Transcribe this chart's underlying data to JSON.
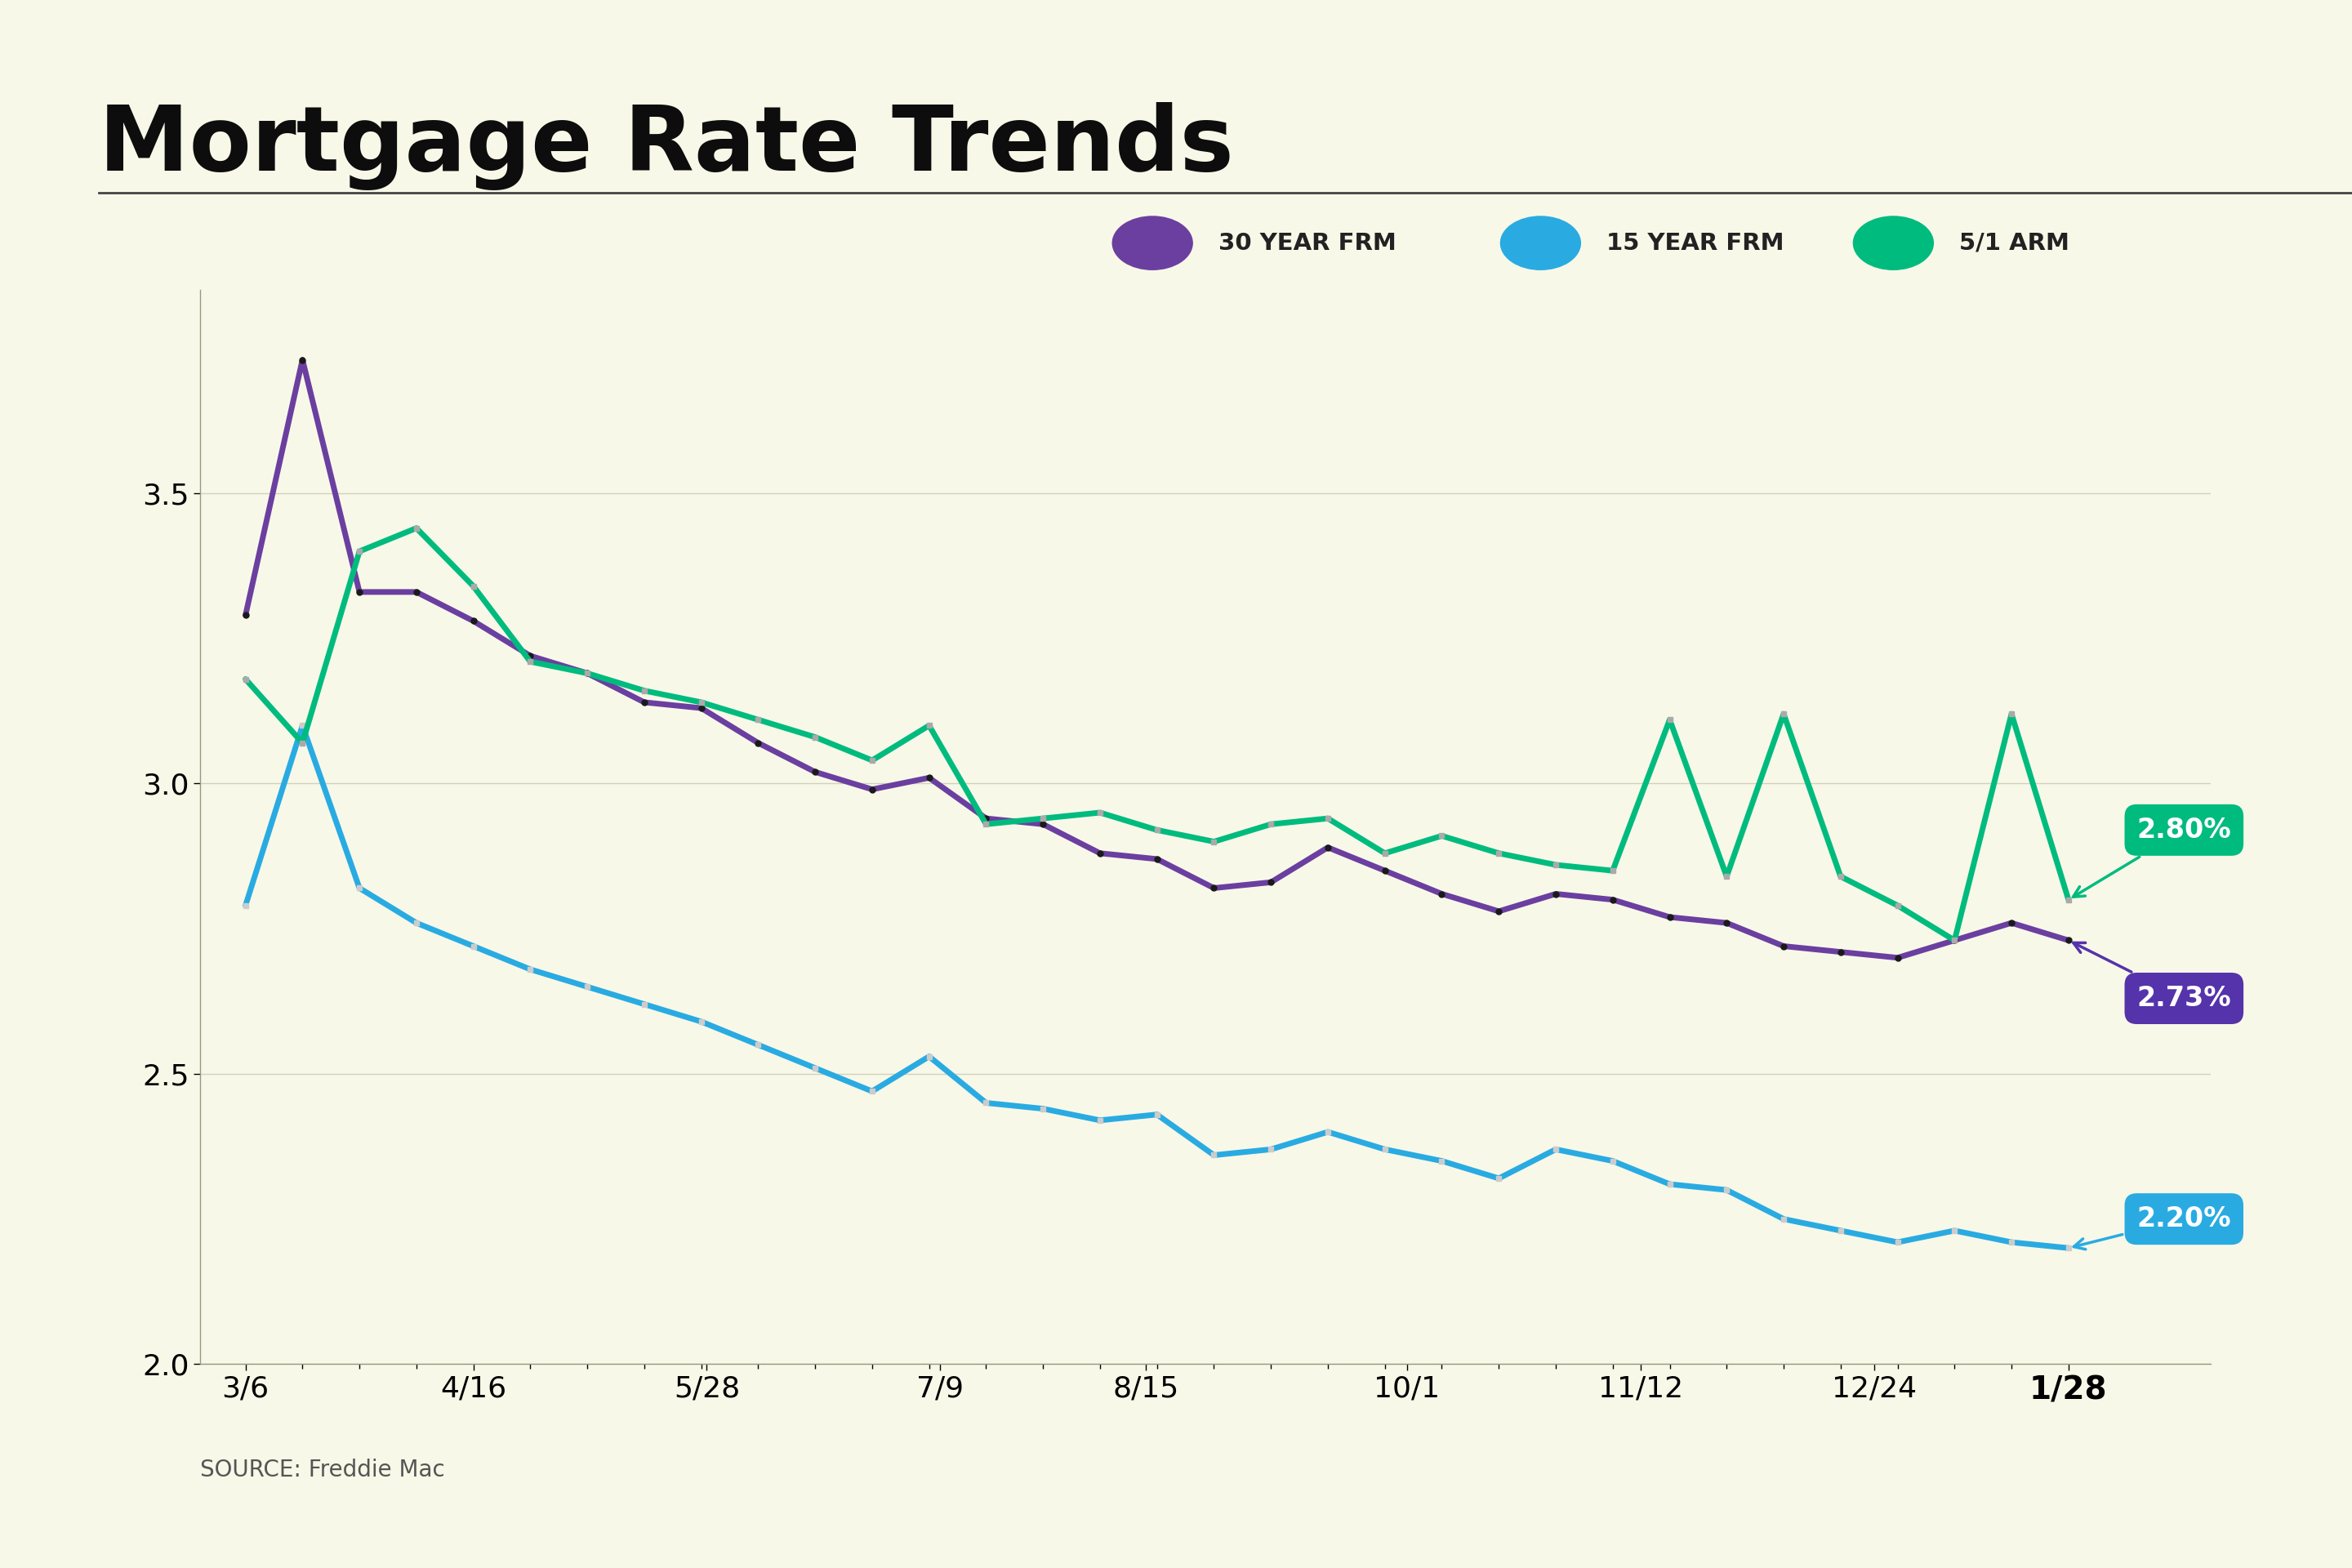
{
  "title": "Mortgage Rate Trends",
  "background_color": "#F8F8E8",
  "source_text": "SOURCE: Freddie Mac",
  "x_labels": [
    "3/6",
    "4/16",
    "5/28",
    "7/9",
    "8/15",
    "10/1",
    "11/12",
    "12/24",
    "1/28"
  ],
  "ylim": [
    2.0,
    3.85
  ],
  "yticks": [
    2.0,
    2.5,
    3.0,
    3.5
  ],
  "legend_items": [
    {
      "label": "30 YEAR FRM",
      "color": "#6B3FA0"
    },
    {
      "label": "15 YEAR FRM",
      "color": "#29ABE2"
    },
    {
      "label": "5/1 ARM",
      "color": "#00BB7E"
    }
  ],
  "series_30yr": {
    "color": "#6B3FA0",
    "linewidth": 5,
    "values": [
      3.29,
      3.73,
      3.33,
      3.33,
      3.28,
      3.22,
      3.19,
      3.14,
      3.13,
      3.07,
      3.02,
      2.99,
      3.01,
      2.94,
      2.93,
      2.88,
      2.87,
      2.82,
      2.83,
      2.89,
      2.85,
      2.81,
      2.78,
      2.81,
      2.8,
      2.77,
      2.76,
      2.72,
      2.71,
      2.7,
      2.73,
      2.76,
      2.73
    ]
  },
  "series_15yr": {
    "color": "#29ABE2",
    "linewidth": 5,
    "values": [
      2.79,
      3.1,
      2.82,
      2.76,
      2.72,
      2.68,
      2.65,
      2.62,
      2.59,
      2.55,
      2.51,
      2.47,
      2.53,
      2.45,
      2.44,
      2.42,
      2.43,
      2.36,
      2.37,
      2.4,
      2.37,
      2.35,
      2.32,
      2.37,
      2.35,
      2.31,
      2.3,
      2.25,
      2.23,
      2.21,
      2.23,
      2.21,
      2.2
    ]
  },
  "series_arm": {
    "color": "#00BB7E",
    "linewidth": 5,
    "values": [
      3.18,
      3.07,
      3.4,
      3.44,
      3.34,
      3.21,
      3.19,
      3.16,
      3.14,
      3.11,
      3.08,
      3.04,
      3.1,
      2.93,
      2.94,
      2.95,
      2.92,
      2.9,
      2.93,
      2.94,
      2.88,
      2.91,
      2.88,
      2.86,
      2.85,
      3.11,
      2.84,
      3.12,
      2.84,
      2.79,
      2.73,
      3.12,
      2.8
    ]
  },
  "num_points": 33,
  "total_days": 328,
  "date_day_offsets": [
    0,
    41,
    83,
    125,
    162,
    209,
    251,
    293,
    328
  ]
}
